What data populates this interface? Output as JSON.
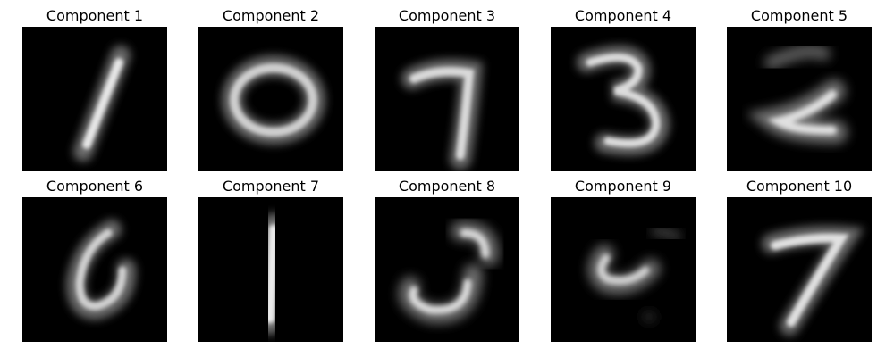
{
  "figure": {
    "background": "#ffffff",
    "panels": [
      {
        "title": "Component 1",
        "digit_shape": "1 (slanted)"
      },
      {
        "title": "Component 2",
        "digit_shape": "0"
      },
      {
        "title": "Component 3",
        "digit_shape": "7"
      },
      {
        "title": "Component 4",
        "digit_shape": "3"
      },
      {
        "title": "Component 5",
        "digit_shape": "2"
      },
      {
        "title": "Component 6",
        "digit_shape": "6"
      },
      {
        "title": "Component 7",
        "digit_shape": "1 (upright)"
      },
      {
        "title": "Component 8",
        "digit_shape": "5 (partial)"
      },
      {
        "title": "Component 9",
        "digit_shape": "5 (faint)"
      },
      {
        "title": "Component 10",
        "digit_shape": "7"
      }
    ],
    "colors": {
      "image_background": "#000000",
      "stroke_bright": "#ffffff",
      "stroke_mid": "#bdbdbd",
      "stroke_dim": "#5a5a5a"
    }
  }
}
